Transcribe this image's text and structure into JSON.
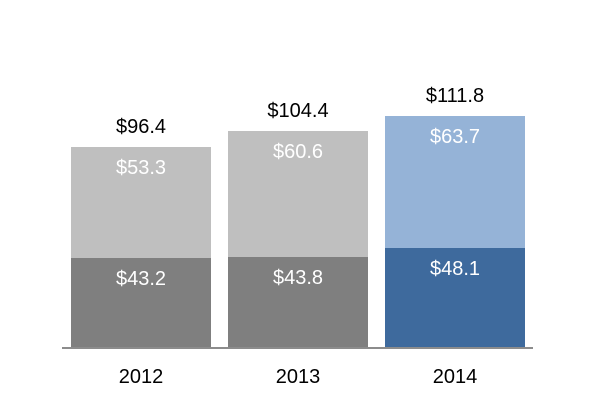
{
  "chart_data": {
    "type": "bar",
    "stacked": true,
    "title": "",
    "xlabel": "",
    "ylabel": "",
    "categories": [
      "2012",
      "2013",
      "2014"
    ],
    "series": [
      {
        "name": "bottom-segment",
        "values": [
          43.2,
          43.8,
          48.1
        ],
        "labels": [
          "$43.2",
          "$43.8",
          "$48.1"
        ],
        "colors": [
          "#7f7f7f",
          "#7f7f7f",
          "#3e6a9d"
        ]
      },
      {
        "name": "top-segment",
        "values": [
          53.3,
          60.6,
          63.7
        ],
        "labels": [
          "$53.3",
          "$60.6",
          "$63.7"
        ],
        "colors": [
          "#bfbfbf",
          "#bfbfbf",
          "#95b3d7"
        ]
      }
    ],
    "totals": [
      96.4,
      104.4,
      111.8
    ],
    "total_labels": [
      "$96.4",
      "$104.4",
      "$111.8"
    ],
    "ylim": [
      0,
      120
    ],
    "grid": false,
    "legend": false,
    "axis_line_color": "#8c8c8c",
    "inside_label_color": "#ffffff",
    "total_label_color": "#000000",
    "tick_label_color": "#000000"
  }
}
